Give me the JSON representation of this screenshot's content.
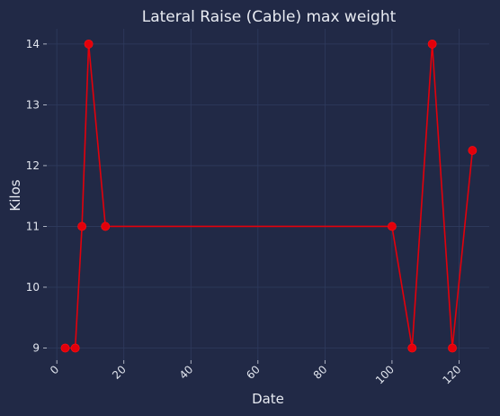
{
  "chart_data": {
    "type": "line",
    "title": "Lateral Raise (Cable) max weight",
    "xlabel": "Date",
    "ylabel": "Kilos",
    "xlim": [
      -3,
      129
    ],
    "ylim": [
      8.8,
      14.25
    ],
    "xticks": [
      0,
      20,
      40,
      60,
      80,
      100,
      120
    ],
    "yticks": [
      9,
      10,
      11,
      12,
      13,
      14
    ],
    "grid": true,
    "series": [
      {
        "color": "#e3000b",
        "points": [
          {
            "x": 2.5,
            "y": 9
          },
          {
            "x": 5.5,
            "y": 9
          },
          {
            "x": 7.5,
            "y": 11
          },
          {
            "x": 9.5,
            "y": 14
          },
          {
            "x": 14.5,
            "y": 11
          },
          {
            "x": 100,
            "y": 11
          },
          {
            "x": 106,
            "y": 9
          },
          {
            "x": 112,
            "y": 14
          },
          {
            "x": 118,
            "y": 9
          },
          {
            "x": 124,
            "y": 12.25
          }
        ]
      }
    ]
  }
}
